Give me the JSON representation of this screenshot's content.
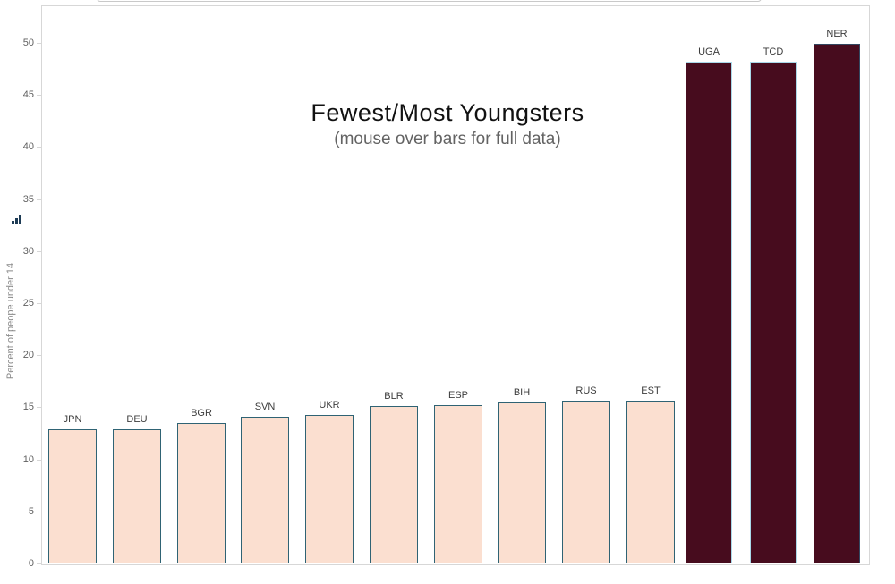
{
  "page": {
    "background": "#ffffff"
  },
  "top_bar": {
    "description": "partially visible cropped control at top edge"
  },
  "axis_icon_name": "mini-bar-chart-icon",
  "chart_data": {
    "type": "bar",
    "title": "Fewest/Most Youngsters",
    "subtitle": "(mouse over bars for full data)",
    "xlabel": "",
    "ylabel": "Percent of peope under 14",
    "ylim": [
      0,
      50
    ],
    "yticks": [
      0,
      5,
      10,
      15,
      20,
      25,
      30,
      35,
      40,
      45,
      50
    ],
    "grid": false,
    "legend": "none",
    "categories": [
      "JPN",
      "DEU",
      "BGR",
      "SVN",
      "UKR",
      "BLR",
      "ESP",
      "BIH",
      "RUS",
      "EST",
      "UGA",
      "TCD",
      "NER"
    ],
    "values": [
      12.9,
      12.9,
      13.5,
      14.1,
      14.3,
      15.1,
      15.2,
      15.5,
      15.6,
      15.6,
      48.2,
      48.2,
      49.9
    ],
    "bars": [
      {
        "code": "JPN",
        "value": 12.9,
        "group": "fewest",
        "fill": "#fbdfd0",
        "border": "#2f6374"
      },
      {
        "code": "DEU",
        "value": 12.9,
        "group": "fewest",
        "fill": "#fbdfd0",
        "border": "#2f6374"
      },
      {
        "code": "BGR",
        "value": 13.5,
        "group": "fewest",
        "fill": "#fbdfd0",
        "border": "#2f6374"
      },
      {
        "code": "SVN",
        "value": 14.1,
        "group": "fewest",
        "fill": "#fbdfd0",
        "border": "#2f6374"
      },
      {
        "code": "UKR",
        "value": 14.3,
        "group": "fewest",
        "fill": "#fbdfd0",
        "border": "#2f6374"
      },
      {
        "code": "BLR",
        "value": 15.1,
        "group": "fewest",
        "fill": "#fbdfd0",
        "border": "#2f6374"
      },
      {
        "code": "ESP",
        "value": 15.2,
        "group": "fewest",
        "fill": "#fbdfd0",
        "border": "#2f6374"
      },
      {
        "code": "BIH",
        "value": 15.5,
        "group": "fewest",
        "fill": "#fbdfd0",
        "border": "#2f6374"
      },
      {
        "code": "RUS",
        "value": 15.6,
        "group": "fewest",
        "fill": "#fbdfd0",
        "border": "#2f6374"
      },
      {
        "code": "EST",
        "value": 15.6,
        "group": "fewest",
        "fill": "#fbdfd0",
        "border": "#2f6374"
      },
      {
        "code": "UGA",
        "value": 48.2,
        "group": "most",
        "fill": "#470c1e",
        "border": "#a9d9e9"
      },
      {
        "code": "TCD",
        "value": 48.2,
        "group": "most",
        "fill": "#470c1e",
        "border": "#a9d9e9"
      },
      {
        "code": "NER",
        "value": 49.9,
        "group": "most",
        "fill": "#470c1e",
        "border": "#334760"
      }
    ],
    "colors": {
      "fewest_fill": "#fbdfd0",
      "fewest_border": "#2f6374",
      "most_fill": "#470c1e",
      "axis_line": "#d7d7d7",
      "tick_label": "#616161",
      "bar_label": "#3c3c3c",
      "title": "#111111",
      "subtitle": "#636363"
    }
  }
}
